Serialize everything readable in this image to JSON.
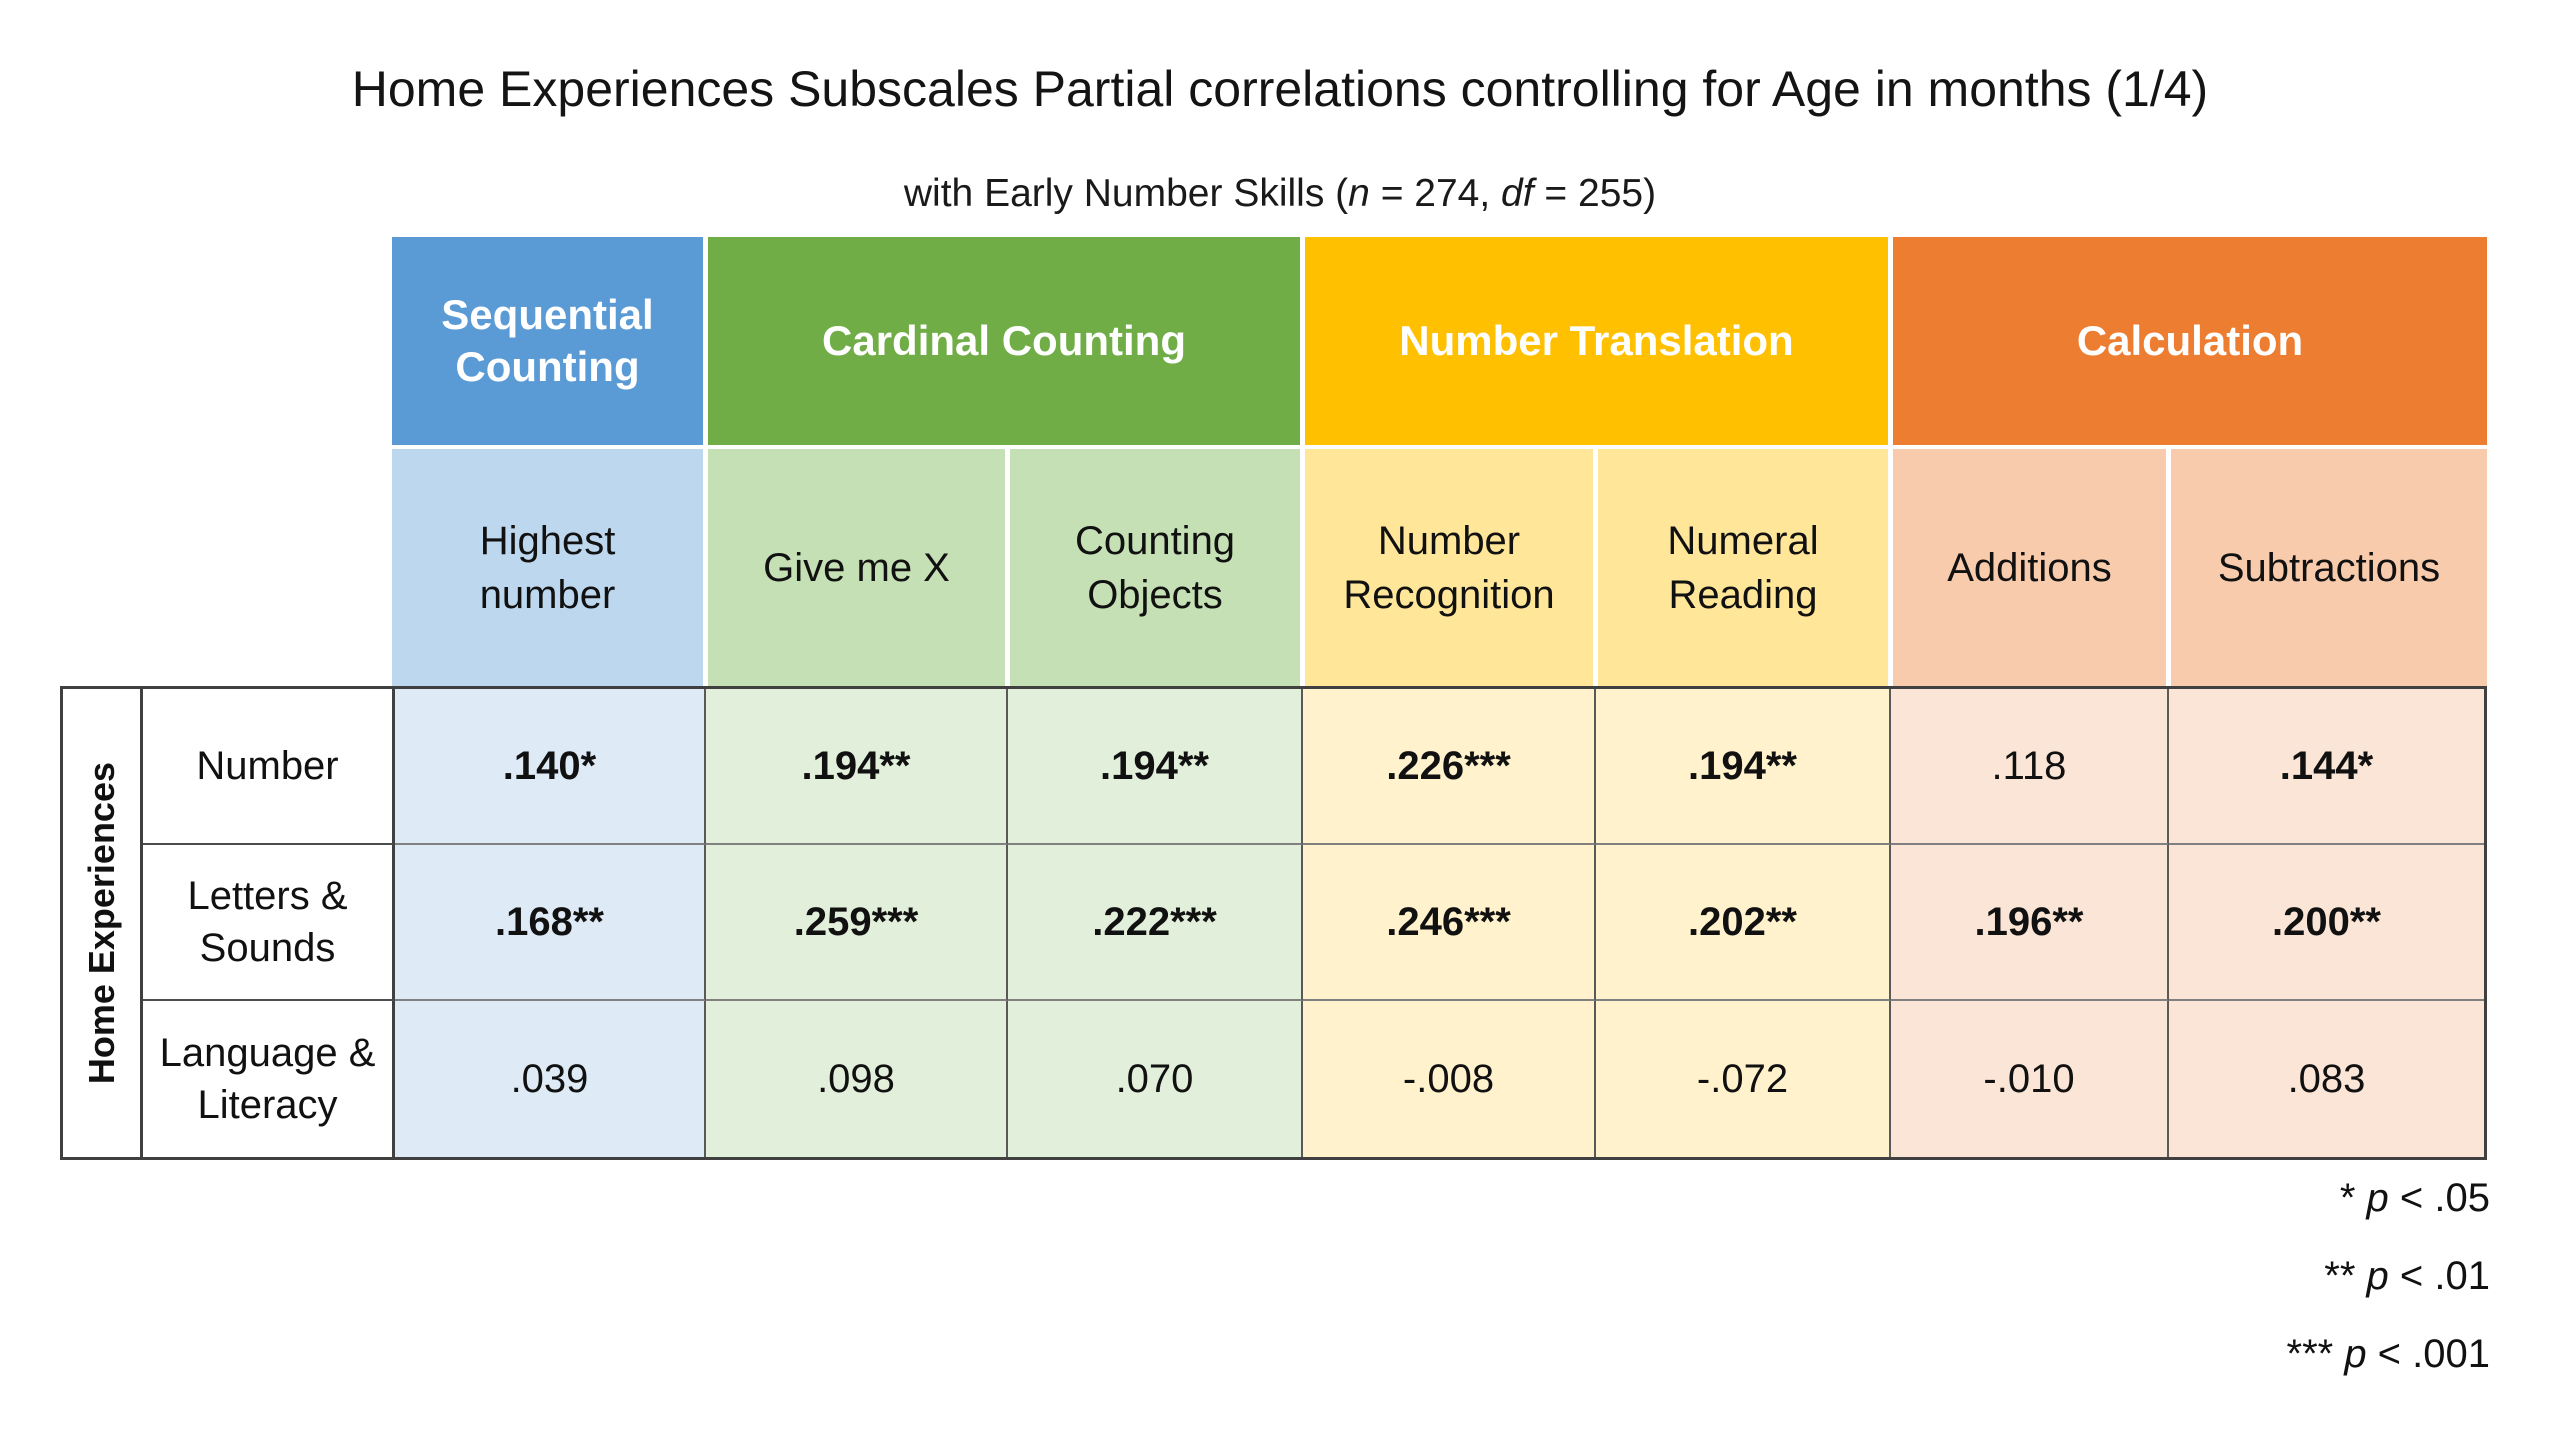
{
  "title": "Home Experiences Subscales Partial correlations controlling for Age in months (1/4)",
  "subtitle": {
    "pre": "with Early Number Skills (",
    "n_var": "n",
    "mid": " = 274, ",
    "df_var": "df",
    "end": " = 255)"
  },
  "chart_data": {
    "type": "table",
    "title": "Home Experiences Subscales Partial correlations controlling for Age in months (1/4)",
    "subtitle": "with Early Number Skills (n = 274, df = 255)",
    "column_groups": [
      {
        "label": "Sequential Counting",
        "color": "#5B9BD5",
        "columns": [
          "Highest number"
        ]
      },
      {
        "label": "Cardinal Counting",
        "color": "#70AD47",
        "columns": [
          "Give me X",
          "Counting Objects"
        ]
      },
      {
        "label": "Number Translation",
        "color": "#FFC000",
        "columns": [
          "Number Recognition",
          "Numeral Reading"
        ]
      },
      {
        "label": "Calculation",
        "color": "#ED7D31",
        "columns": [
          "Additions",
          "Subtractions"
        ]
      }
    ],
    "columns": [
      {
        "label": "Highest number",
        "group": "Sequential Counting",
        "header_bg": "#BDD7EE",
        "body_bg": "#DEEAF6"
      },
      {
        "label": "Give me X",
        "group": "Cardinal Counting",
        "header_bg": "#C5E0B4",
        "body_bg": "#E2EFDA"
      },
      {
        "label": "Counting Objects",
        "group": "Cardinal Counting",
        "header_bg": "#C5E0B4",
        "body_bg": "#E2EFDA"
      },
      {
        "label": "Number Recognition",
        "group": "Number Translation",
        "header_bg": "#FFE699",
        "body_bg": "#FFF2CC"
      },
      {
        "label": "Numeral Reading",
        "group": "Number Translation",
        "header_bg": "#FFE699",
        "body_bg": "#FFF2CC"
      },
      {
        "label": "Additions",
        "group": "Calculation",
        "header_bg": "#F8CBAD",
        "body_bg": "#FBE5D6"
      },
      {
        "label": "Subtractions",
        "group": "Calculation",
        "header_bg": "#F8CBAD",
        "body_bg": "#FBE5D6"
      }
    ],
    "row_group_label": "Home Experiences",
    "rows": [
      {
        "label": "Number",
        "values": [
          ".140*",
          ".194**",
          ".194**",
          ".226***",
          ".194**",
          ".118",
          ".144*"
        ],
        "bold": [
          true,
          true,
          true,
          true,
          true,
          false,
          true
        ]
      },
      {
        "label": "Letters & Sounds",
        "values": [
          ".168**",
          ".259***",
          ".222***",
          ".246***",
          ".202**",
          ".196**",
          ".200**"
        ],
        "bold": [
          true,
          true,
          true,
          true,
          true,
          true,
          true
        ]
      },
      {
        "label": "Language & Literacy",
        "values": [
          ".039",
          ".098",
          ".070",
          "-.008",
          "-.072",
          "-.010",
          ".083"
        ],
        "bold": [
          false,
          false,
          false,
          false,
          false,
          false,
          false
        ]
      }
    ],
    "footnotes": [
      {
        "stars": "* ",
        "p": "p",
        "rest": " < .05"
      },
      {
        "stars": "** ",
        "p": "p",
        "rest": " < .01"
      },
      {
        "stars": "*** ",
        "p": "p",
        "rest": " < .001"
      }
    ]
  }
}
